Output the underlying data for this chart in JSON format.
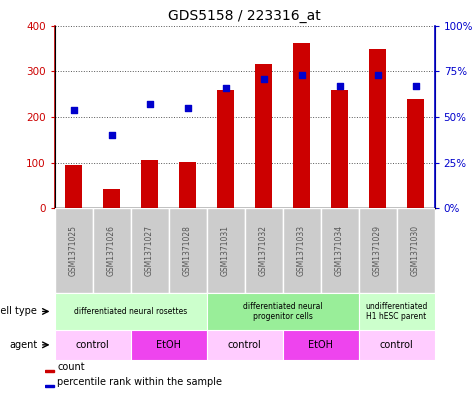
{
  "title": "GDS5158 / 223316_at",
  "samples": [
    "GSM1371025",
    "GSM1371026",
    "GSM1371027",
    "GSM1371028",
    "GSM1371031",
    "GSM1371032",
    "GSM1371033",
    "GSM1371034",
    "GSM1371029",
    "GSM1371030"
  ],
  "counts": [
    95,
    42,
    105,
    102,
    260,
    315,
    362,
    260,
    348,
    240
  ],
  "percentiles": [
    54,
    40,
    57,
    55,
    66,
    71,
    73,
    67,
    73,
    67
  ],
  "ylim_left": [
    0,
    400
  ],
  "ylim_right": [
    0,
    100
  ],
  "yticks_left": [
    0,
    100,
    200,
    300,
    400
  ],
  "yticks_right": [
    0,
    25,
    50,
    75,
    100
  ],
  "ytick_labels_left": [
    "0",
    "100",
    "200",
    "300",
    "400"
  ],
  "ytick_labels_right": [
    "0%",
    "25%",
    "50%",
    "75%",
    "100%"
  ],
  "bar_color": "#cc0000",
  "dot_color": "#0000cc",
  "bar_width": 0.45,
  "cell_type_groups": [
    {
      "label": "differentiated neural rosettes",
      "start": 0,
      "end": 3,
      "color": "#ccffcc"
    },
    {
      "label": "differentiated neural\nprogenitor cells",
      "start": 4,
      "end": 7,
      "color": "#99ee99"
    },
    {
      "label": "undifferentiated\nH1 hESC parent",
      "start": 8,
      "end": 9,
      "color": "#ccffcc"
    }
  ],
  "agent_groups": [
    {
      "label": "control",
      "start": 0,
      "end": 1,
      "color": "#ffccff"
    },
    {
      "label": "EtOH",
      "start": 2,
      "end": 3,
      "color": "#ee44ee"
    },
    {
      "label": "control",
      "start": 4,
      "end": 5,
      "color": "#ffccff"
    },
    {
      "label": "EtOH",
      "start": 6,
      "end": 7,
      "color": "#ee44ee"
    },
    {
      "label": "control",
      "start": 8,
      "end": 9,
      "color": "#ffccff"
    }
  ],
  "cell_type_label": "cell type",
  "agent_label": "agent",
  "legend_count": "count",
  "legend_percentile": "percentile rank within the sample",
  "grid_color": "#555555",
  "tick_color_left": "#cc0000",
  "tick_color_right": "#0000cc",
  "bg_color": "#ffffff",
  "sample_bg": "#cccccc",
  "sample_text_color": "#555555"
}
